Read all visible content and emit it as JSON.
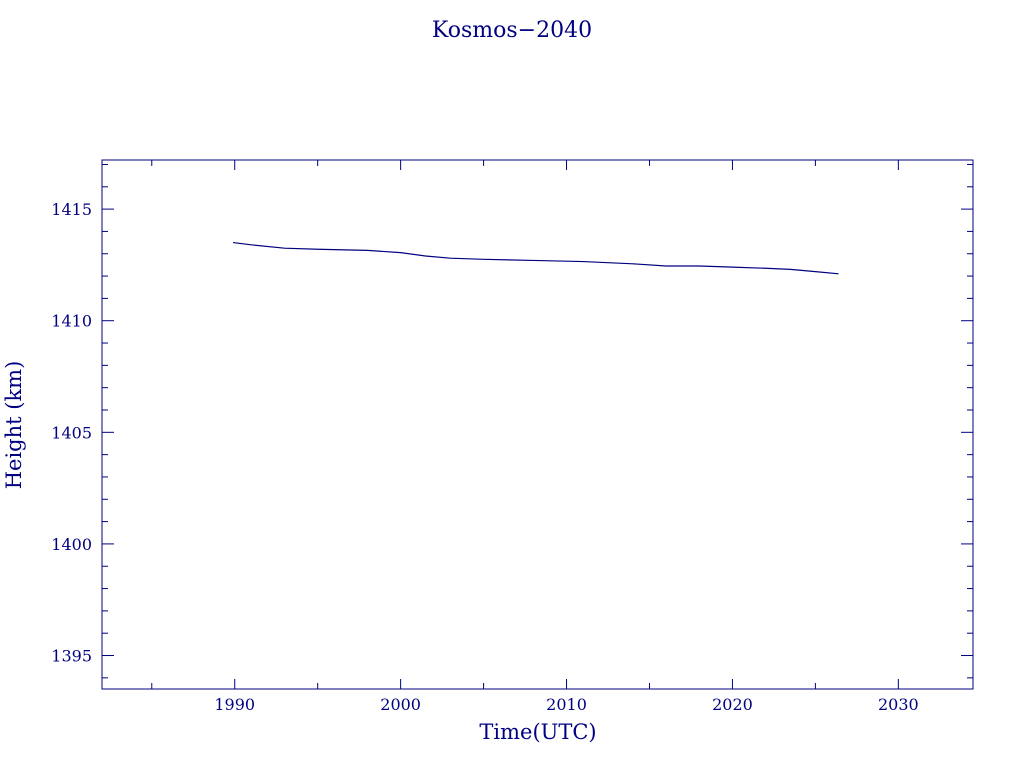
{
  "chart_data": {
    "type": "line",
    "title": "Kosmos−2040",
    "xlabel": "Time(UTC)",
    "ylabel": "Height (km)",
    "xlim": [
      1982.0,
      2034.5
    ],
    "ylim": [
      1393.5,
      1417.2
    ],
    "xticks": [
      1990,
      2000,
      2010,
      2020,
      2030
    ],
    "yticks": [
      1395,
      1400,
      1405,
      1410,
      1415
    ],
    "grid": false,
    "color": "#000080",
    "series": [
      {
        "x": [
          1989.9,
          1991.0,
          1993.0,
          1995.0,
          1998.0,
          2000.0,
          2001.5,
          2003.0,
          2005.0,
          2008.0,
          2011.0,
          2014.0,
          2016.0,
          2018.0,
          2020.0,
          2022.0,
          2023.5,
          2025.0,
          2026.4
        ],
        "y": [
          1413.5,
          1413.4,
          1413.25,
          1413.2,
          1413.15,
          1413.05,
          1412.9,
          1412.8,
          1412.75,
          1412.7,
          1412.65,
          1412.55,
          1412.45,
          1412.45,
          1412.4,
          1412.35,
          1412.3,
          1412.2,
          1412.1
        ]
      }
    ]
  }
}
